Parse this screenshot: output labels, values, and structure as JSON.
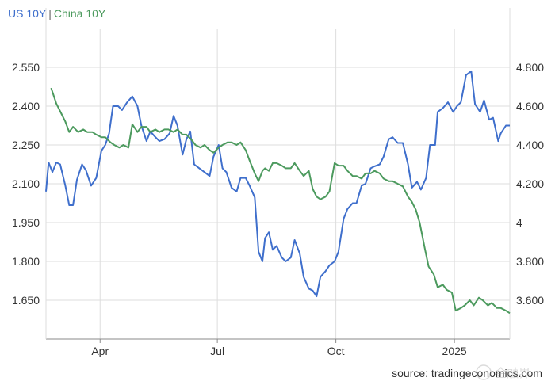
{
  "legend": {
    "series_a": "US 10Y",
    "separator": "|",
    "series_b": "China 10Y"
  },
  "source_text": "source: tradingeconomics.com",
  "watermark": "金融界",
  "colors": {
    "us": "#3f6fcc",
    "china": "#4c9a5e",
    "grid": "#dddddd",
    "axis": "#8a8a8a"
  },
  "chart_data": {
    "type": "line",
    "title": "",
    "x_ticks": [
      "Apr",
      "Jul",
      "Oct",
      "2025"
    ],
    "y_left": {
      "ticks": [
        "2.550",
        "2.400",
        "2.250",
        "2.100",
        "1.950",
        "1.800",
        "1.650"
      ],
      "range": [
        1.5,
        2.7
      ]
    },
    "y_right": {
      "ticks": [
        "4.800",
        "4.600",
        "4.400",
        "4.200",
        "4",
        "3.800",
        "3.600"
      ],
      "range": [
        3.4,
        5.0
      ]
    },
    "x_range": [
      "2024-02-19",
      "2025-02-13"
    ],
    "grid": true,
    "series": [
      {
        "name": "US 10Y",
        "axis": "right",
        "color": "#3f6fcc",
        "points": [
          [
            "2024-02-19",
            4.16
          ],
          [
            "2024-02-21",
            4.31
          ],
          [
            "2024-02-24",
            4.26
          ],
          [
            "2024-02-27",
            4.31
          ],
          [
            "2024-03-01",
            4.3
          ],
          [
            "2024-03-05",
            4.19
          ],
          [
            "2024-03-08",
            4.09
          ],
          [
            "2024-03-11",
            4.09
          ],
          [
            "2024-03-14",
            4.22
          ],
          [
            "2024-03-18",
            4.3
          ],
          [
            "2024-03-21",
            4.27
          ],
          [
            "2024-03-25",
            4.19
          ],
          [
            "2024-03-29",
            4.23
          ],
          [
            "2024-04-02",
            4.37
          ],
          [
            "2024-04-05",
            4.4
          ],
          [
            "2024-04-08",
            4.46
          ],
          [
            "2024-04-11",
            4.6
          ],
          [
            "2024-04-15",
            4.6
          ],
          [
            "2024-04-18",
            4.58
          ],
          [
            "2024-04-22",
            4.62
          ],
          [
            "2024-04-26",
            4.65
          ],
          [
            "2024-04-30",
            4.6
          ],
          [
            "2024-05-03",
            4.5
          ],
          [
            "2024-05-07",
            4.42
          ],
          [
            "2024-05-10",
            4.47
          ],
          [
            "2024-05-14",
            4.44
          ],
          [
            "2024-05-17",
            4.42
          ],
          [
            "2024-05-21",
            4.43
          ],
          [
            "2024-05-25",
            4.46
          ],
          [
            "2024-05-28",
            4.55
          ],
          [
            "2024-05-31",
            4.5
          ],
          [
            "2024-06-04",
            4.35
          ],
          [
            "2024-06-07",
            4.43
          ],
          [
            "2024-06-10",
            4.47
          ],
          [
            "2024-06-13",
            4.3
          ],
          [
            "2024-06-17",
            4.28
          ],
          [
            "2024-06-21",
            4.26
          ],
          [
            "2024-06-25",
            4.24
          ],
          [
            "2024-06-28",
            4.34
          ],
          [
            "2024-07-02",
            4.4
          ],
          [
            "2024-07-05",
            4.28
          ],
          [
            "2024-07-08",
            4.26
          ],
          [
            "2024-07-12",
            4.18
          ],
          [
            "2024-07-16",
            4.16
          ],
          [
            "2024-07-19",
            4.23
          ],
          [
            "2024-07-23",
            4.23
          ],
          [
            "2024-07-26",
            4.19
          ],
          [
            "2024-07-30",
            4.13
          ],
          [
            "2024-08-02",
            3.85
          ],
          [
            "2024-08-05",
            3.8
          ],
          [
            "2024-08-07",
            3.92
          ],
          [
            "2024-08-10",
            3.95
          ],
          [
            "2024-08-13",
            3.86
          ],
          [
            "2024-08-16",
            3.88
          ],
          [
            "2024-08-20",
            3.82
          ],
          [
            "2024-08-23",
            3.8
          ],
          [
            "2024-08-27",
            3.82
          ],
          [
            "2024-08-30",
            3.91
          ],
          [
            "2024-09-03",
            3.84
          ],
          [
            "2024-09-06",
            3.72
          ],
          [
            "2024-09-10",
            3.66
          ],
          [
            "2024-09-13",
            3.65
          ],
          [
            "2024-09-16",
            3.62
          ],
          [
            "2024-09-19",
            3.72
          ],
          [
            "2024-09-23",
            3.75
          ],
          [
            "2024-09-26",
            3.78
          ],
          [
            "2024-09-30",
            3.8
          ],
          [
            "2024-10-03",
            3.85
          ],
          [
            "2024-10-07",
            4.02
          ],
          [
            "2024-10-10",
            4.07
          ],
          [
            "2024-10-14",
            4.1
          ],
          [
            "2024-10-17",
            4.1
          ],
          [
            "2024-10-21",
            4.19
          ],
          [
            "2024-10-24",
            4.2
          ],
          [
            "2024-10-28",
            4.28
          ],
          [
            "2024-10-31",
            4.29
          ],
          [
            "2024-11-04",
            4.3
          ],
          [
            "2024-11-07",
            4.34
          ],
          [
            "2024-11-11",
            4.43
          ],
          [
            "2024-11-14",
            4.44
          ],
          [
            "2024-11-18",
            4.41
          ],
          [
            "2024-11-22",
            4.41
          ],
          [
            "2024-11-26",
            4.3
          ],
          [
            "2024-11-29",
            4.18
          ],
          [
            "2024-12-03",
            4.21
          ],
          [
            "2024-12-06",
            4.17
          ],
          [
            "2024-12-10",
            4.23
          ],
          [
            "2024-12-13",
            4.4
          ],
          [
            "2024-12-17",
            4.4
          ],
          [
            "2024-12-19",
            4.57
          ],
          [
            "2024-12-23",
            4.59
          ],
          [
            "2024-12-27",
            4.62
          ],
          [
            "2024-12-31",
            4.57
          ],
          [
            "2025-01-03",
            4.6
          ],
          [
            "2025-01-06",
            4.62
          ],
          [
            "2025-01-10",
            4.76
          ],
          [
            "2025-01-14",
            4.78
          ],
          [
            "2025-01-17",
            4.61
          ],
          [
            "2025-01-21",
            4.57
          ],
          [
            "2025-01-24",
            4.63
          ],
          [
            "2025-01-28",
            4.53
          ],
          [
            "2025-01-31",
            4.54
          ],
          [
            "2025-02-04",
            4.42
          ],
          [
            "2025-02-06",
            4.46
          ],
          [
            "2025-02-10",
            4.5
          ],
          [
            "2025-02-13",
            4.5
          ]
        ]
      },
      {
        "name": "China 10Y",
        "axis": "left",
        "color": "#4c9a5e",
        "points": [
          [
            "2024-02-23",
            2.47
          ],
          [
            "2024-02-27",
            2.41
          ],
          [
            "2024-03-01",
            2.38
          ],
          [
            "2024-03-05",
            2.34
          ],
          [
            "2024-03-08",
            2.3
          ],
          [
            "2024-03-11",
            2.32
          ],
          [
            "2024-03-15",
            2.3
          ],
          [
            "2024-03-19",
            2.31
          ],
          [
            "2024-03-22",
            2.3
          ],
          [
            "2024-03-26",
            2.3
          ],
          [
            "2024-03-29",
            2.29
          ],
          [
            "2024-04-02",
            2.28
          ],
          [
            "2024-04-05",
            2.28
          ],
          [
            "2024-04-09",
            2.26
          ],
          [
            "2024-04-12",
            2.25
          ],
          [
            "2024-04-16",
            2.24
          ],
          [
            "2024-04-19",
            2.25
          ],
          [
            "2024-04-23",
            2.24
          ],
          [
            "2024-04-26",
            2.33
          ],
          [
            "2024-04-30",
            2.3
          ],
          [
            "2024-05-03",
            2.32
          ],
          [
            "2024-05-07",
            2.32
          ],
          [
            "2024-05-10",
            2.3
          ],
          [
            "2024-05-14",
            2.31
          ],
          [
            "2024-05-17",
            2.3
          ],
          [
            "2024-05-21",
            2.31
          ],
          [
            "2024-05-24",
            2.31
          ],
          [
            "2024-05-28",
            2.3
          ],
          [
            "2024-05-31",
            2.31
          ],
          [
            "2024-06-04",
            2.29
          ],
          [
            "2024-06-07",
            2.29
          ],
          [
            "2024-06-11",
            2.27
          ],
          [
            "2024-06-14",
            2.25
          ],
          [
            "2024-06-18",
            2.24
          ],
          [
            "2024-06-21",
            2.25
          ],
          [
            "2024-06-25",
            2.23
          ],
          [
            "2024-06-28",
            2.22
          ],
          [
            "2024-07-02",
            2.24
          ],
          [
            "2024-07-05",
            2.25
          ],
          [
            "2024-07-09",
            2.26
          ],
          [
            "2024-07-12",
            2.26
          ],
          [
            "2024-07-16",
            2.25
          ],
          [
            "2024-07-19",
            2.26
          ],
          [
            "2024-07-23",
            2.23
          ],
          [
            "2024-07-26",
            2.19
          ],
          [
            "2024-07-30",
            2.14
          ],
          [
            "2024-08-02",
            2.11
          ],
          [
            "2024-08-05",
            2.15
          ],
          [
            "2024-08-07",
            2.16
          ],
          [
            "2024-08-10",
            2.15
          ],
          [
            "2024-08-13",
            2.18
          ],
          [
            "2024-08-16",
            2.18
          ],
          [
            "2024-08-20",
            2.17
          ],
          [
            "2024-08-23",
            2.16
          ],
          [
            "2024-08-27",
            2.16
          ],
          [
            "2024-08-30",
            2.18
          ],
          [
            "2024-09-03",
            2.15
          ],
          [
            "2024-09-06",
            2.13
          ],
          [
            "2024-09-10",
            2.15
          ],
          [
            "2024-09-13",
            2.08
          ],
          [
            "2024-09-16",
            2.05
          ],
          [
            "2024-09-19",
            2.04
          ],
          [
            "2024-09-23",
            2.05
          ],
          [
            "2024-09-26",
            2.07
          ],
          [
            "2024-09-30",
            2.18
          ],
          [
            "2024-10-03",
            2.17
          ],
          [
            "2024-10-07",
            2.17
          ],
          [
            "2024-10-10",
            2.15
          ],
          [
            "2024-10-14",
            2.13
          ],
          [
            "2024-10-17",
            2.13
          ],
          [
            "2024-10-21",
            2.12
          ],
          [
            "2024-10-24",
            2.14
          ],
          [
            "2024-10-28",
            2.14
          ],
          [
            "2024-10-31",
            2.15
          ],
          [
            "2024-11-04",
            2.14
          ],
          [
            "2024-11-07",
            2.12
          ],
          [
            "2024-11-11",
            2.11
          ],
          [
            "2024-11-14",
            2.11
          ],
          [
            "2024-11-18",
            2.1
          ],
          [
            "2024-11-22",
            2.09
          ],
          [
            "2024-11-26",
            2.05
          ],
          [
            "2024-11-29",
            2.03
          ],
          [
            "2024-12-02",
            2.0
          ],
          [
            "2024-12-05",
            1.95
          ],
          [
            "2024-12-09",
            1.85
          ],
          [
            "2024-12-12",
            1.78
          ],
          [
            "2024-12-16",
            1.75
          ],
          [
            "2024-12-19",
            1.7
          ],
          [
            "2024-12-23",
            1.71
          ],
          [
            "2024-12-26",
            1.69
          ],
          [
            "2024-12-30",
            1.68
          ],
          [
            "2025-01-02",
            1.61
          ],
          [
            "2025-01-06",
            1.62
          ],
          [
            "2025-01-09",
            1.63
          ],
          [
            "2025-01-13",
            1.65
          ],
          [
            "2025-01-16",
            1.63
          ],
          [
            "2025-01-20",
            1.66
          ],
          [
            "2025-01-23",
            1.65
          ],
          [
            "2025-01-27",
            1.63
          ],
          [
            "2025-01-30",
            1.64
          ],
          [
            "2025-02-03",
            1.62
          ],
          [
            "2025-02-06",
            1.62
          ],
          [
            "2025-02-10",
            1.61
          ],
          [
            "2025-02-13",
            1.6
          ]
        ]
      }
    ]
  }
}
